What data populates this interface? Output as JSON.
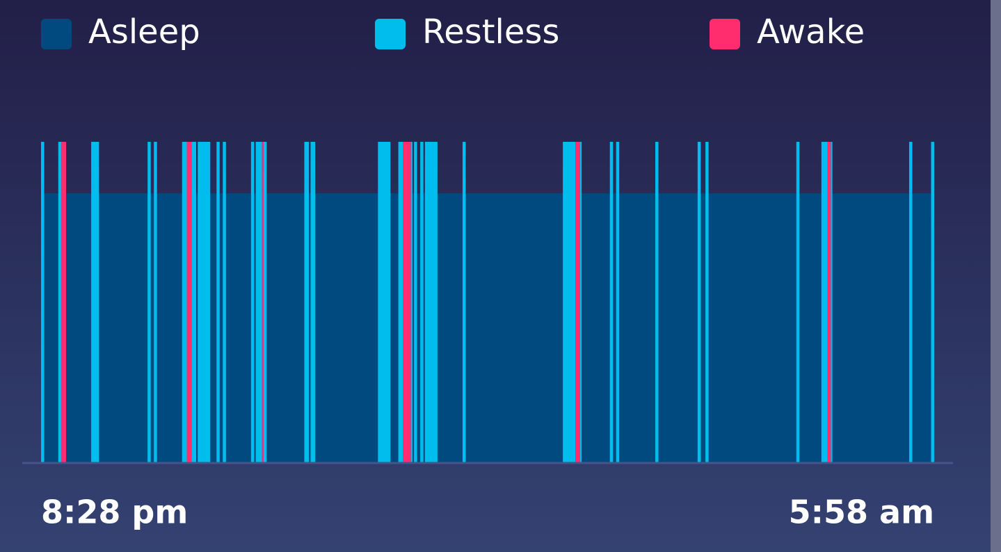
{
  "chart_data": {
    "type": "timeline",
    "series": [
      {
        "name": "Asleep",
        "color": "#004a80",
        "segments": [
          [
            0,
            570
          ]
        ]
      },
      {
        "name": "Restless",
        "color": "#00bdee",
        "segments": [
          [
            0,
            2
          ],
          [
            11,
            13
          ],
          [
            32,
            37
          ],
          [
            68,
            70
          ],
          [
            72,
            74
          ],
          [
            90,
            93
          ],
          [
            96,
            99
          ],
          [
            100,
            108
          ],
          [
            112,
            114
          ],
          [
            116,
            118
          ],
          [
            134,
            136
          ],
          [
            137,
            141
          ],
          [
            142,
            144
          ],
          [
            168,
            171
          ],
          [
            172,
            175
          ],
          [
            215,
            223
          ],
          [
            228,
            231
          ],
          [
            236,
            237
          ],
          [
            238,
            240
          ],
          [
            242,
            244
          ],
          [
            245,
            253
          ],
          [
            269,
            271
          ],
          [
            333,
            341
          ],
          [
            344,
            345
          ],
          [
            363,
            365
          ],
          [
            367,
            369
          ],
          [
            392,
            394
          ],
          [
            419,
            421
          ],
          [
            424,
            426
          ],
          [
            482,
            484
          ],
          [
            498,
            502
          ],
          [
            504,
            505
          ],
          [
            554,
            556
          ],
          [
            568,
            570
          ]
        ]
      },
      {
        "name": "Awake",
        "color": "#ff2d6d",
        "segments": [
          [
            13,
            16
          ],
          [
            93,
            96
          ],
          [
            141,
            142
          ],
          [
            231,
            236
          ],
          [
            341,
            344
          ],
          [
            502,
            504
          ]
        ]
      }
    ],
    "xlim": [
      0,
      570
    ],
    "xticks": [
      {
        "value": 0,
        "label": "8:28 pm"
      },
      {
        "value": 570,
        "label": "5:58 am"
      }
    ]
  }
}
